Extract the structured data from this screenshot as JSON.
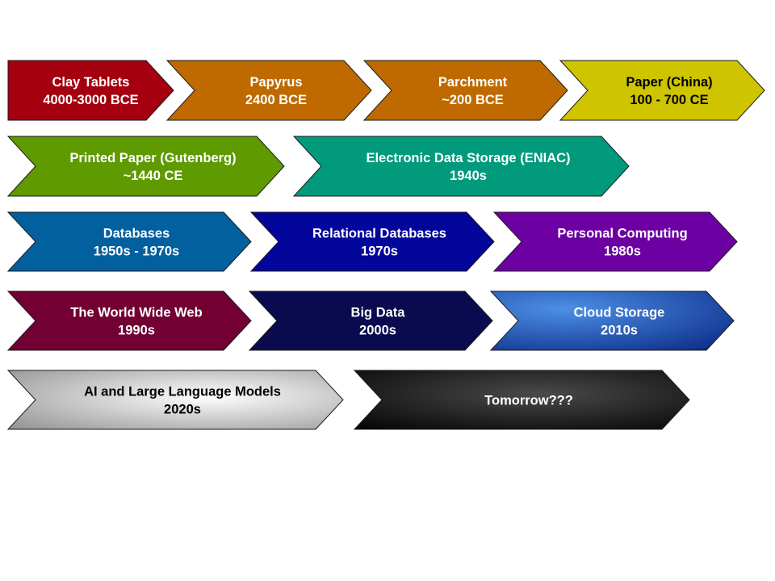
{
  "timeline": [
    {
      "id": "clay-tablets",
      "lines": [
        "Clay Tablets",
        "4000-3000 BCE"
      ],
      "fill": "#a50010",
      "text_color": "#ffffff"
    },
    {
      "id": "papyrus",
      "lines": [
        "Papyrus",
        "2400 BCE"
      ],
      "fill": "#bf6a00",
      "text_color": "#ffffff"
    },
    {
      "id": "parchment",
      "lines": [
        "Parchment",
        "~200 BCE"
      ],
      "fill": "#bf6a00",
      "text_color": "#ffffff"
    },
    {
      "id": "paper-china",
      "lines": [
        "Paper (China)",
        "100 - 700 CE"
      ],
      "fill": "#cec400",
      "text_color": "#000000"
    },
    {
      "id": "printed-paper",
      "lines": [
        "Printed Paper (Gutenberg)",
        "~1440 CE"
      ],
      "fill": "#5e9a00",
      "text_color": "#ffffff"
    },
    {
      "id": "electronic-storage",
      "lines": [
        "Electronic Data Storage (ENIAC)",
        "1940s"
      ],
      "fill": "#019a7c",
      "text_color": "#ffffff"
    },
    {
      "id": "databases",
      "lines": [
        "Databases",
        "1950s - 1970s"
      ],
      "fill": "#02609f",
      "text_color": "#ffffff"
    },
    {
      "id": "relational-databases",
      "lines": [
        "Relational Databases",
        "1970s"
      ],
      "fill": "#02069b",
      "text_color": "#ffffff"
    },
    {
      "id": "personal-computing",
      "lines": [
        "Personal Computing",
        "1980s"
      ],
      "fill": "#6c00a2",
      "text_color": "#ffffff"
    },
    {
      "id": "world-wide-web",
      "lines": [
        "The World Wide Web",
        "1990s"
      ],
      "fill": "#720033",
      "text_color": "#ffffff"
    },
    {
      "id": "big-data",
      "lines": [
        "Big Data",
        "2000s"
      ],
      "fill": "#0a0a4e",
      "text_color": "#ffffff"
    },
    {
      "id": "cloud-storage",
      "lines": [
        "Cloud Storage",
        "2010s"
      ],
      "fill": "#1d56b8",
      "text_color": "#ffffff"
    },
    {
      "id": "ai-llm",
      "lines": [
        "AI and Large Language Models",
        "2020s"
      ],
      "fill": "#b0b0b0",
      "text_color": "#000000"
    },
    {
      "id": "tomorrow",
      "lines": [
        "Tomorrow???"
      ],
      "fill": "#1c1c1c",
      "text_color": "#ffffff"
    }
  ]
}
